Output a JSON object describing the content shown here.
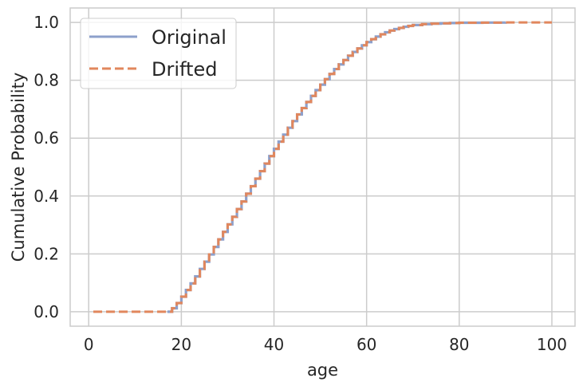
{
  "chart_data": {
    "type": "line",
    "xlabel": "age",
    "ylabel": "Cumulative Probability",
    "xlim": [
      -4,
      105
    ],
    "ylim": [
      -0.05,
      1.05
    ],
    "x_ticks": [
      0,
      20,
      40,
      60,
      80,
      100
    ],
    "x_tick_labels": [
      "0",
      "20",
      "40",
      "60",
      "80",
      "100"
    ],
    "y_ticks": [
      0.0,
      0.2,
      0.4,
      0.6,
      0.8,
      1.0
    ],
    "y_tick_labels": [
      "0.0",
      "0.2",
      "0.4",
      "0.6",
      "0.8",
      "1.0"
    ],
    "grid": true,
    "legend_position": "top-left",
    "series": [
      {
        "name": "Original",
        "style": "solid",
        "color": "#8da0cb",
        "x": [
          17,
          18,
          19,
          20,
          21,
          22,
          23,
          24,
          25,
          26,
          27,
          28,
          29,
          30,
          31,
          32,
          33,
          34,
          35,
          36,
          37,
          38,
          39,
          40,
          41,
          42,
          43,
          44,
          45,
          46,
          47,
          48,
          49,
          50,
          51,
          52,
          53,
          54,
          55,
          56,
          57,
          58,
          59,
          60,
          61,
          62,
          63,
          64,
          65,
          66,
          67,
          68,
          69,
          70,
          72,
          74,
          76,
          78,
          80,
          85,
          90
        ],
        "y": [
          0.0,
          0.012,
          0.03,
          0.052,
          0.075,
          0.098,
          0.122,
          0.148,
          0.173,
          0.198,
          0.224,
          0.25,
          0.276,
          0.302,
          0.328,
          0.355,
          0.381,
          0.408,
          0.434,
          0.46,
          0.486,
          0.512,
          0.538,
          0.563,
          0.588,
          0.612,
          0.636,
          0.659,
          0.682,
          0.704,
          0.725,
          0.746,
          0.766,
          0.785,
          0.804,
          0.822,
          0.839,
          0.855,
          0.87,
          0.885,
          0.898,
          0.91,
          0.921,
          0.932,
          0.942,
          0.951,
          0.959,
          0.966,
          0.972,
          0.977,
          0.981,
          0.985,
          0.988,
          0.991,
          0.994,
          0.996,
          0.997,
          0.998,
          0.999,
          0.9995,
          1.0
        ]
      },
      {
        "name": "Drifted",
        "style": "dashed",
        "color": "#e1875d",
        "x": [
          1,
          17,
          18,
          19,
          20,
          21,
          22,
          23,
          24,
          25,
          26,
          27,
          28,
          29,
          30,
          31,
          32,
          33,
          34,
          35,
          36,
          37,
          38,
          39,
          40,
          41,
          42,
          43,
          44,
          45,
          46,
          47,
          48,
          49,
          50,
          51,
          52,
          53,
          54,
          55,
          56,
          57,
          58,
          59,
          60,
          61,
          62,
          63,
          64,
          65,
          66,
          67,
          68,
          69,
          70,
          72,
          74,
          76,
          78,
          80,
          85,
          90,
          100
        ],
        "y": [
          0.0,
          0.0,
          0.012,
          0.03,
          0.052,
          0.075,
          0.098,
          0.122,
          0.148,
          0.173,
          0.198,
          0.224,
          0.25,
          0.276,
          0.302,
          0.328,
          0.355,
          0.381,
          0.408,
          0.434,
          0.46,
          0.486,
          0.512,
          0.538,
          0.563,
          0.588,
          0.612,
          0.636,
          0.659,
          0.682,
          0.704,
          0.725,
          0.746,
          0.766,
          0.785,
          0.804,
          0.822,
          0.839,
          0.855,
          0.87,
          0.885,
          0.898,
          0.91,
          0.921,
          0.932,
          0.942,
          0.951,
          0.959,
          0.966,
          0.972,
          0.977,
          0.981,
          0.985,
          0.988,
          0.991,
          0.994,
          0.996,
          0.997,
          0.998,
          0.999,
          0.9995,
          1.0,
          1.0
        ]
      }
    ]
  }
}
